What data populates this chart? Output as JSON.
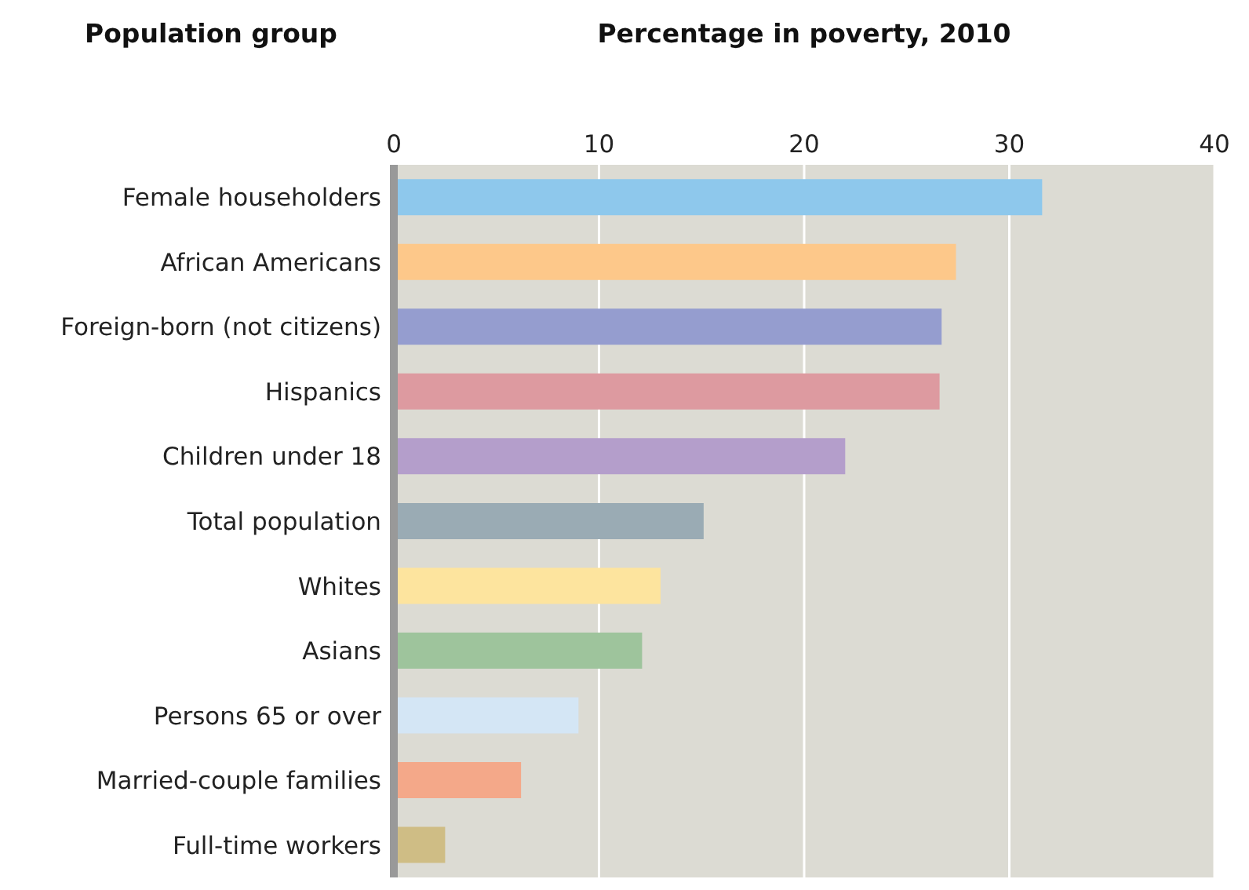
{
  "chart_data": {
    "type": "bar",
    "orientation": "horizontal",
    "ylabel": "Population group",
    "xlabel": "Percentage in poverty, 2010",
    "categories": [
      "Female householders",
      "African Americans",
      "Foreign-born (not citizens)",
      "Hispanics",
      "Children under 18",
      "Total population",
      "Whites",
      "Asians",
      "Persons 65 or over",
      "Married-couple families",
      "Full-time workers"
    ],
    "values": [
      31.6,
      27.4,
      26.7,
      26.6,
      22.0,
      15.1,
      13.0,
      12.1,
      9.0,
      6.2,
      2.5
    ],
    "colors": [
      "#8ec8ec",
      "#fdc88a",
      "#959dcf",
      "#dd9aa0",
      "#b49ecb",
      "#9aabb4",
      "#fde49e",
      "#9ec49c",
      "#d4e6f5",
      "#f4a889",
      "#cfbd85"
    ],
    "xlim": [
      0,
      40
    ],
    "xticks": [
      0,
      10,
      20,
      30,
      40
    ],
    "grid": "x"
  }
}
